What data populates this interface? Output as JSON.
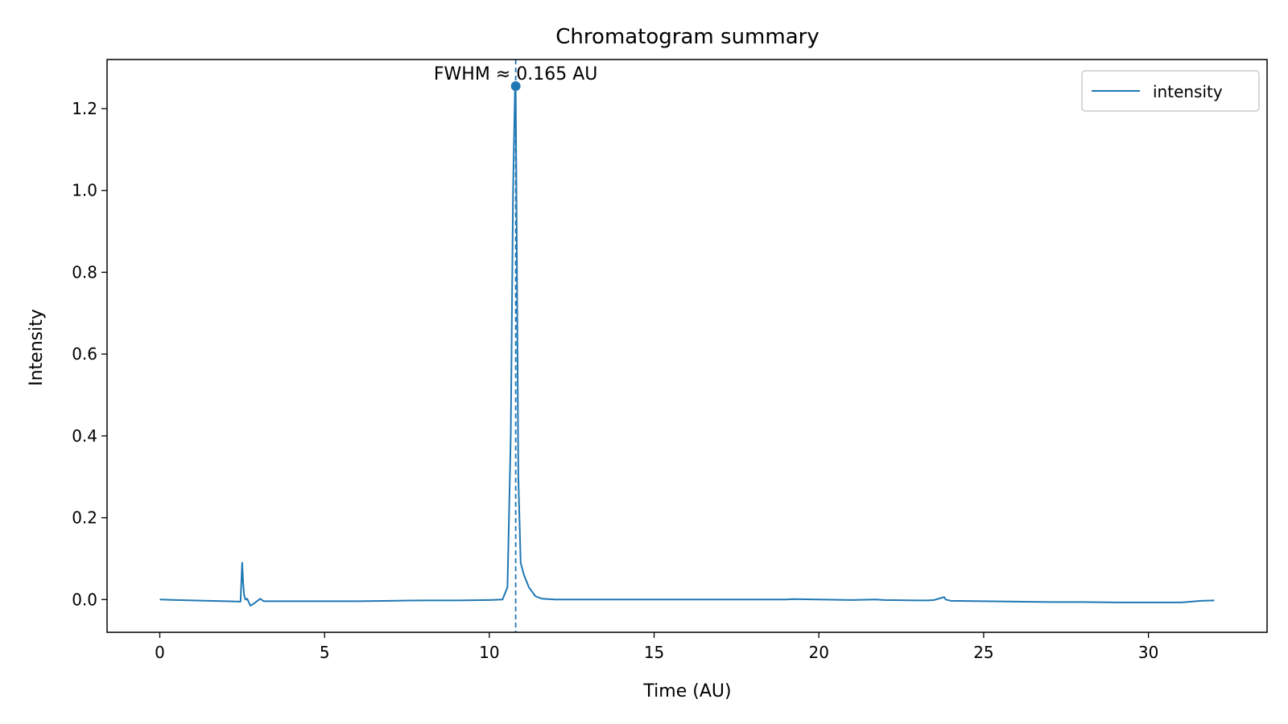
{
  "chart_data": {
    "type": "line",
    "title": "Chromatogram summary",
    "xlabel": "Time (AU)",
    "ylabel": "Intensity",
    "xlim": [
      -1.6,
      33.6
    ],
    "ylim": [
      -0.08,
      1.32
    ],
    "xticks": [
      0,
      5,
      10,
      15,
      20,
      25,
      30
    ],
    "yticks": [
      0.0,
      0.2,
      0.4,
      0.6,
      0.8,
      1.0,
      1.2
    ],
    "xtick_labels": [
      "0",
      "5",
      "10",
      "15",
      "20",
      "25",
      "30"
    ],
    "ytick_labels": [
      "0.0",
      "0.2",
      "0.4",
      "0.6",
      "0.8",
      "1.0",
      "1.2"
    ],
    "grid": false,
    "legend_position": "top-right",
    "colors": {
      "series": "#1f77b4"
    },
    "series": [
      {
        "name": "intensity",
        "x": [
          0,
          0.5,
          1,
          1.5,
          2,
          2.45,
          2.5,
          2.53,
          2.56,
          2.6,
          2.65,
          2.75,
          2.85,
          2.95,
          3.05,
          3.15,
          3.25,
          3.35,
          4,
          5,
          6,
          7,
          8,
          9,
          10,
          10.4,
          10.55,
          10.65,
          10.72,
          10.78,
          10.8,
          10.83,
          10.88,
          10.95,
          11.05,
          11.2,
          11.4,
          11.6,
          12,
          13,
          14,
          15,
          16,
          17,
          18,
          19,
          19.2,
          20,
          21,
          21.7,
          22,
          23,
          23.3,
          23.5,
          23.8,
          23.85,
          24,
          25,
          26,
          27,
          28,
          29,
          30,
          31,
          31.6,
          32
        ],
        "y": [
          0.0,
          -0.001,
          -0.002,
          -0.003,
          -0.004,
          -0.005,
          0.09,
          0.04,
          0.01,
          0.0,
          0.002,
          -0.015,
          -0.01,
          -0.004,
          0.002,
          -0.004,
          -0.004,
          -0.004,
          -0.004,
          -0.004,
          -0.004,
          -0.003,
          -0.002,
          -0.002,
          -0.001,
          0.0,
          0.03,
          0.4,
          1.0,
          1.255,
          1.24,
          0.9,
          0.3,
          0.09,
          0.06,
          0.03,
          0.008,
          0.002,
          0.0,
          0.0,
          0.0,
          0.0,
          0.0,
          0.0,
          0.0,
          0.0,
          0.001,
          0.0,
          -0.001,
          0.0,
          -0.001,
          -0.002,
          -0.002,
          -0.001,
          0.006,
          0.0,
          -0.003,
          -0.004,
          -0.005,
          -0.006,
          -0.006,
          -0.007,
          -0.007,
          -0.007,
          -0.003,
          -0.002
        ]
      }
    ],
    "peak": {
      "x": 10.8,
      "y": 1.255
    },
    "annotation": "FWHM ≈ 0.165 AU"
  }
}
